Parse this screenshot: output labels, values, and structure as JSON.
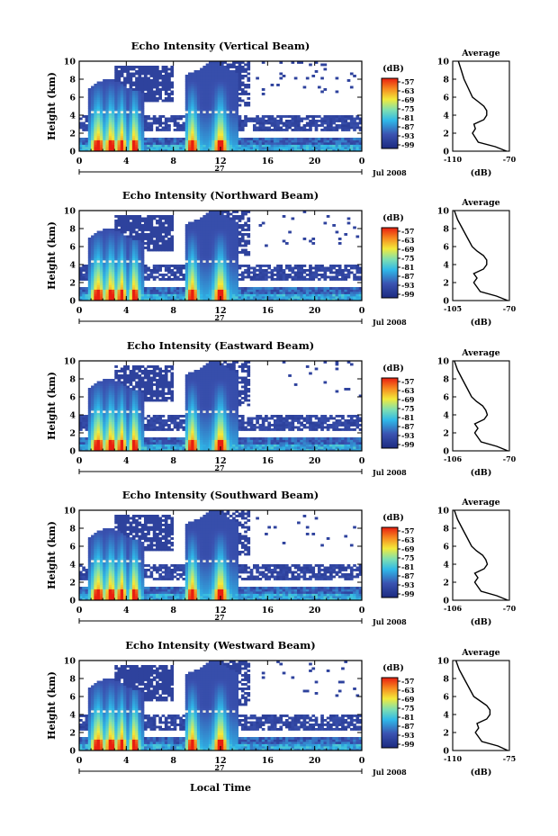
{
  "figure": {
    "xlabel": "Local Time",
    "date_label": "Jul 2008",
    "day_label": "27",
    "colorbar_unit": "(dB)",
    "colorbar_ticks": [
      "-57",
      "-63",
      "-69",
      "-75",
      "-81",
      "-87",
      "-93",
      "-99"
    ],
    "colors": {
      "low": "#1c2a80",
      "mid": "#2fb8e8",
      "high": "#e81e10"
    }
  },
  "chart_data": [
    {
      "type": "heatmap",
      "title": "Echo Intensity (Vertical Beam)",
      "ylabel": "Height (km)",
      "xlim": [
        0,
        24
      ],
      "ylim": [
        0,
        10
      ],
      "xticks": [
        "0",
        "4",
        "8",
        "12",
        "16",
        "20",
        "0"
      ],
      "yticks": [
        "0",
        "2",
        "4",
        "6",
        "8",
        "10"
      ],
      "clim": [
        -99,
        -57
      ],
      "average_profile": {
        "title": "Average",
        "xlabel": "(dB)",
        "xlim": [
          -110,
          -70
        ],
        "xticks": [
          "-110",
          "-70"
        ],
        "height_km": [
          0,
          0.5,
          1,
          1.5,
          2,
          2.5,
          3,
          3.5,
          4,
          4.5,
          5,
          5.5,
          6,
          7,
          8,
          9,
          10
        ],
        "db": [
          -72,
          -80,
          -92,
          -94,
          -96,
          -94,
          -95,
          -88,
          -86,
          -86,
          -88,
          -92,
          -96,
          -99,
          -102,
          -104,
          -106
        ]
      }
    },
    {
      "type": "heatmap",
      "title": "Echo Intensity (Northward Beam)",
      "ylabel": "Height (km)",
      "xlim": [
        0,
        24
      ],
      "ylim": [
        0,
        10
      ],
      "xticks": [
        "0",
        "4",
        "8",
        "12",
        "16",
        "20",
        "0"
      ],
      "yticks": [
        "0",
        "2",
        "4",
        "6",
        "8",
        "10"
      ],
      "clim": [
        -99,
        -57
      ],
      "average_profile": {
        "title": "Average",
        "xlabel": "(dB)",
        "xlim": [
          -105,
          -70
        ],
        "xticks": [
          "-105",
          "-70"
        ],
        "height_km": [
          0,
          0.5,
          1,
          1.5,
          2,
          2.5,
          3,
          3.5,
          4,
          4.5,
          5,
          5.5,
          6,
          7,
          8,
          9,
          10
        ],
        "db": [
          -71,
          -78,
          -88,
          -90,
          -92,
          -90,
          -92,
          -86,
          -84,
          -84,
          -86,
          -90,
          -93,
          -96,
          -99,
          -102,
          -104
        ]
      }
    },
    {
      "type": "heatmap",
      "title": "Echo Intensity (Eastward Beam)",
      "ylabel": "Height (km)",
      "xlim": [
        0,
        24
      ],
      "ylim": [
        0,
        10
      ],
      "xticks": [
        "0",
        "4",
        "8",
        "12",
        "16",
        "20",
        "0"
      ],
      "yticks": [
        "0",
        "2",
        "4",
        "6",
        "8",
        "10"
      ],
      "clim": [
        -99,
        -57
      ],
      "average_profile": {
        "title": "Average",
        "xlabel": "(dB)",
        "xlim": [
          -106,
          -70
        ],
        "xticks": [
          "-106",
          "-70"
        ],
        "height_km": [
          0,
          0.5,
          1,
          1.5,
          2,
          2.5,
          3,
          3.5,
          4,
          4.5,
          5,
          5.5,
          6,
          7,
          8,
          9,
          10
        ],
        "db": [
          -71,
          -78,
          -88,
          -90,
          -92,
          -90,
          -92,
          -86,
          -84,
          -85,
          -87,
          -91,
          -94,
          -97,
          -100,
          -103,
          -105
        ]
      }
    },
    {
      "type": "heatmap",
      "title": "Echo Intensity (Southward Beam)",
      "ylabel": "Height (km)",
      "xlim": [
        0,
        24
      ],
      "ylim": [
        0,
        10
      ],
      "xticks": [
        "0",
        "4",
        "8",
        "12",
        "16",
        "20",
        "0"
      ],
      "yticks": [
        "0",
        "2",
        "4",
        "6",
        "8",
        "10"
      ],
      "clim": [
        -99,
        -57
      ],
      "average_profile": {
        "title": "Average",
        "xlabel": "(dB)",
        "xlim": [
          -106,
          -70
        ],
        "xticks": [
          "-106",
          "-70"
        ],
        "height_km": [
          0,
          0.5,
          1,
          1.5,
          2,
          2.5,
          3,
          3.5,
          4,
          4.5,
          5,
          5.5,
          6,
          7,
          8,
          9,
          10
        ],
        "db": [
          -71,
          -78,
          -88,
          -90,
          -92,
          -90,
          -92,
          -86,
          -84,
          -85,
          -87,
          -91,
          -94,
          -97,
          -100,
          -103,
          -105
        ]
      }
    },
    {
      "type": "heatmap",
      "title": "Echo Intensity (Westward Beam)",
      "ylabel": "Height (km)",
      "xlim": [
        0,
        24
      ],
      "ylim": [
        0,
        10
      ],
      "xticks": [
        "0",
        "4",
        "8",
        "12",
        "16",
        "20",
        "0"
      ],
      "yticks": [
        "0",
        "2",
        "4",
        "6",
        "8",
        "10"
      ],
      "clim": [
        -99,
        -57
      ],
      "average_profile": {
        "title": "Average",
        "xlabel": "(dB)",
        "xlim": [
          -110,
          -75
        ],
        "xticks": [
          "-110",
          "-75"
        ],
        "height_km": [
          0,
          0.5,
          1,
          1.5,
          2,
          2.5,
          3,
          3.5,
          4,
          4.5,
          5,
          5.5,
          6,
          7,
          8,
          9,
          10
        ],
        "db": [
          -76,
          -82,
          -92,
          -94,
          -96,
          -94,
          -95,
          -89,
          -87,
          -87,
          -89,
          -93,
          -97,
          -100,
          -103,
          -106,
          -108
        ]
      }
    }
  ]
}
